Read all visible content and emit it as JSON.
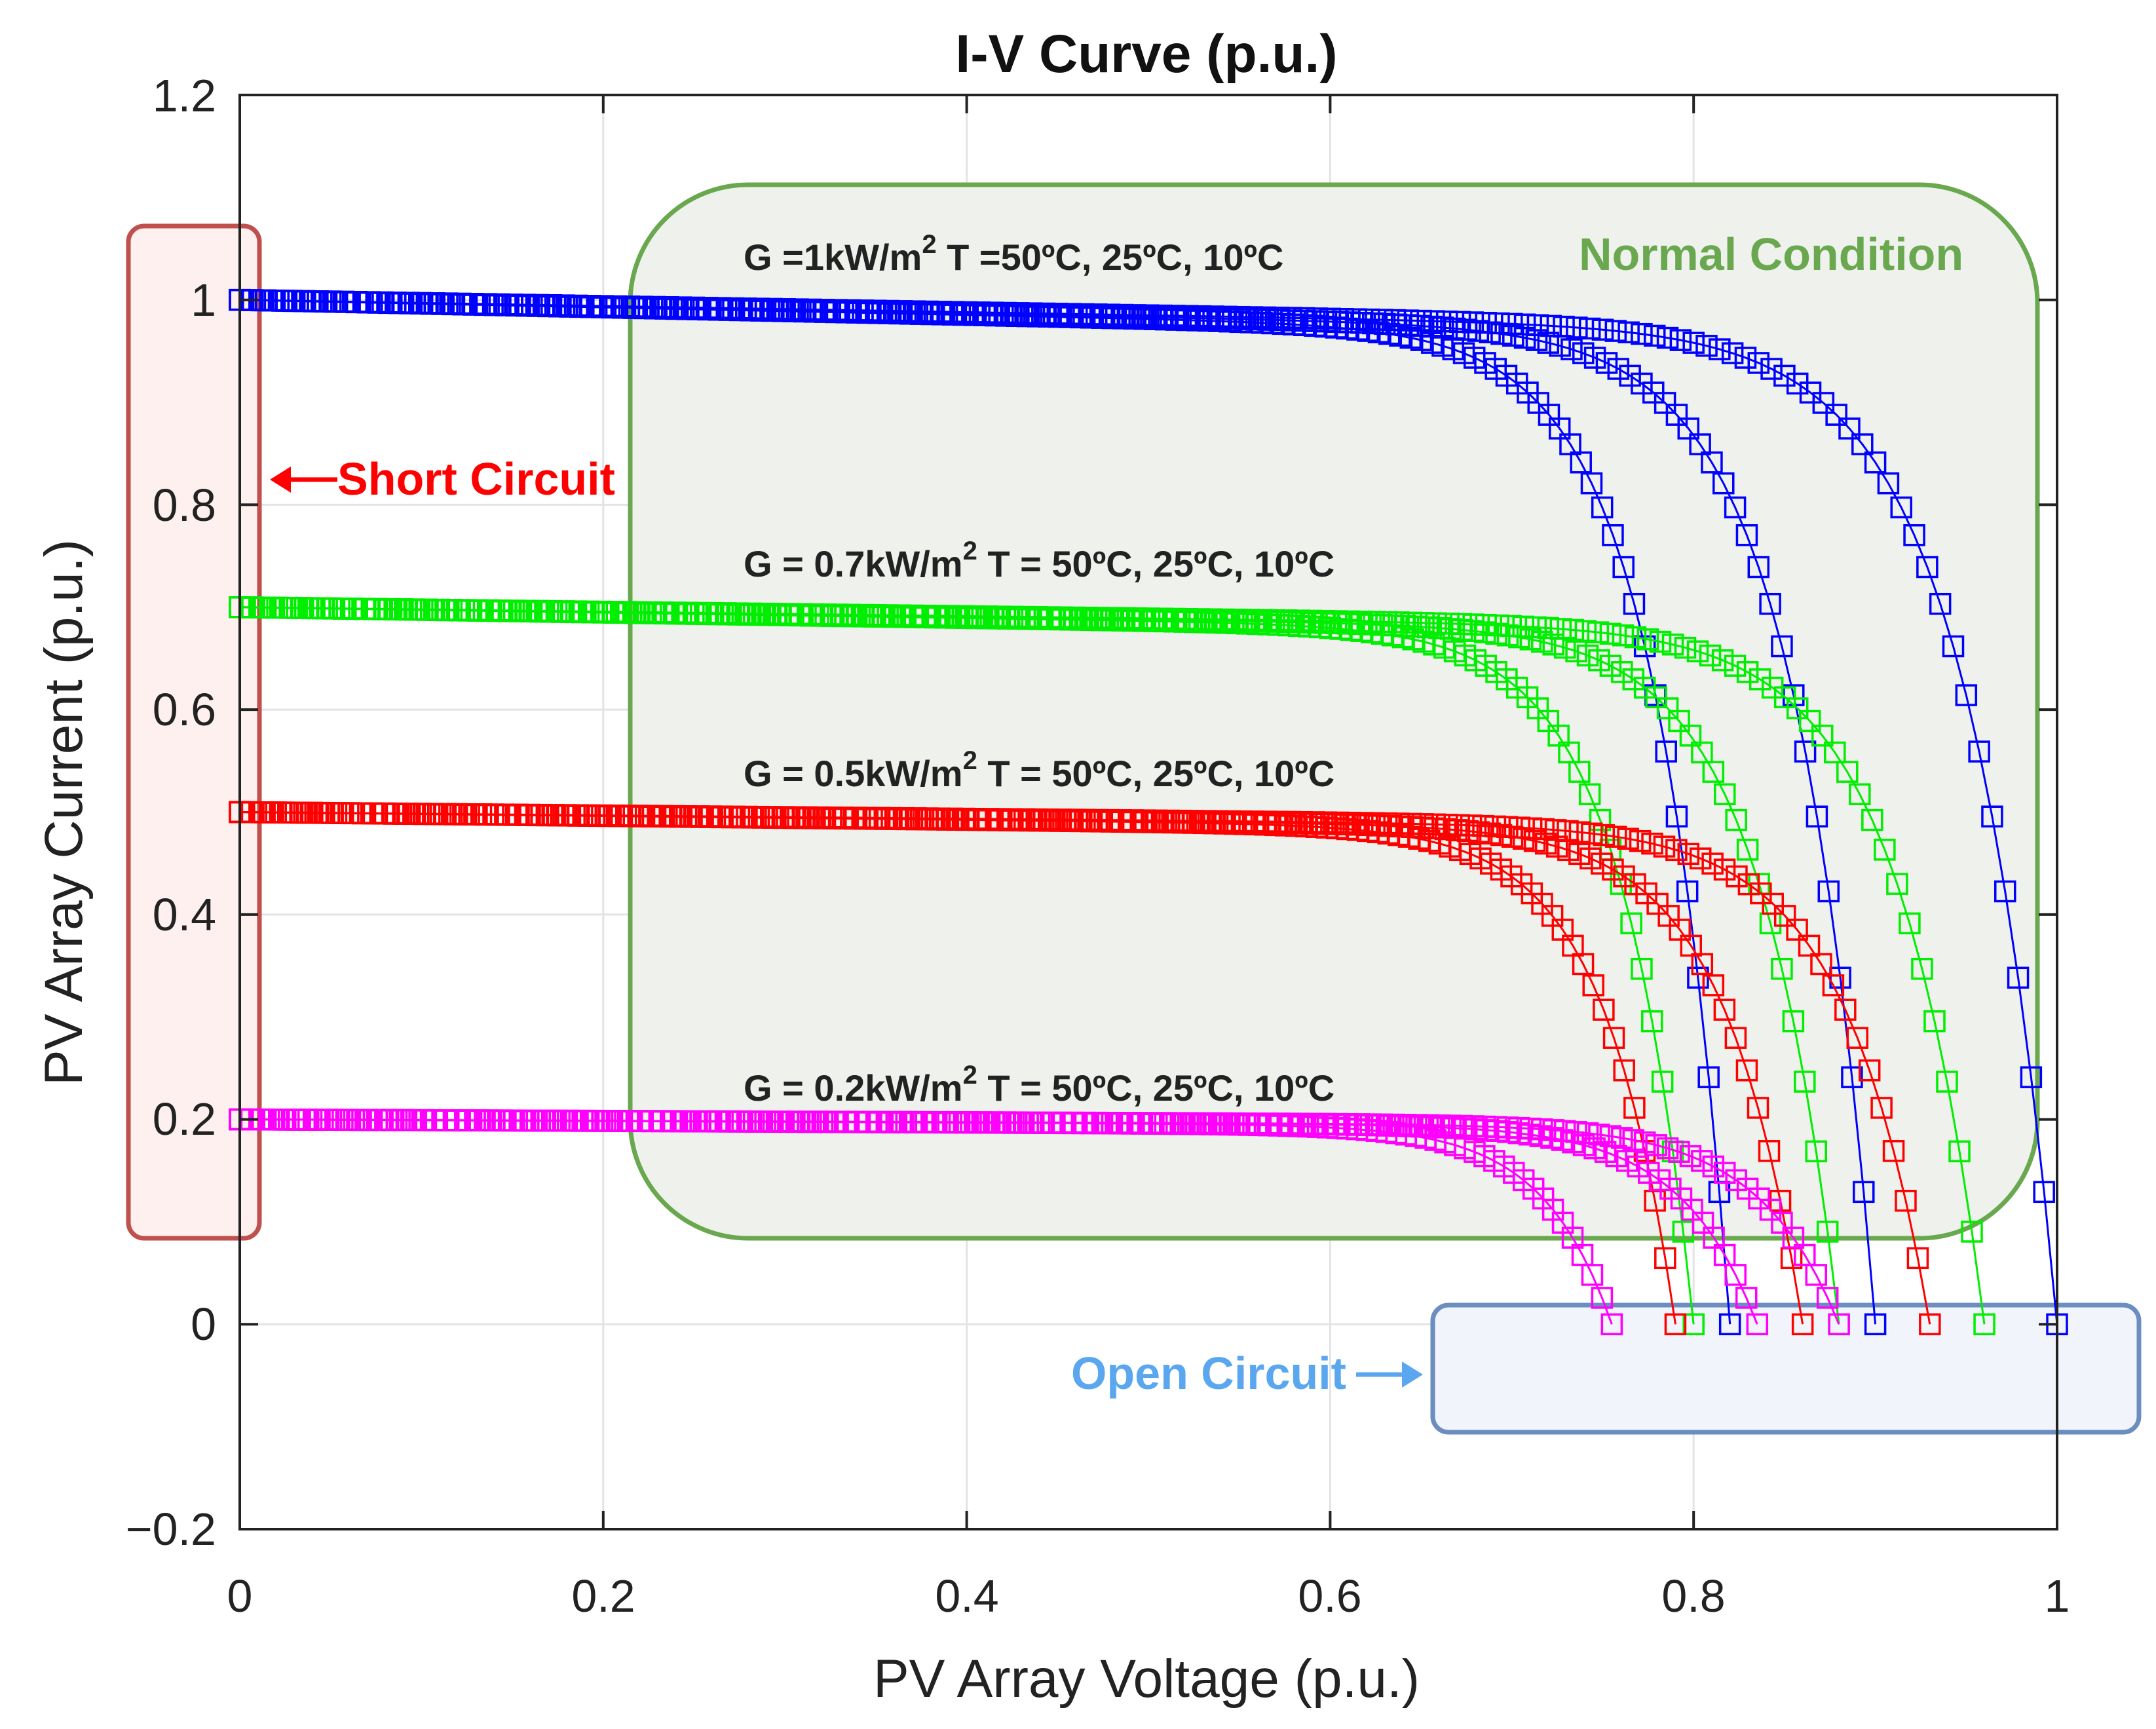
{
  "chart_data": {
    "type": "line",
    "title": "I-V Curve (p.u.)",
    "xlabel": "PV Array Voltage (p.u.)",
    "ylabel": "PV Array Current (p.u.)",
    "xlim": [
      0,
      1
    ],
    "ylim": [
      -0.2,
      1.2
    ],
    "xticks": [
      0,
      0.2,
      0.4,
      0.6,
      0.8,
      1
    ],
    "yticks": [
      -0.2,
      0,
      0.2,
      0.4,
      0.6,
      0.8,
      1,
      1.2
    ],
    "xtick_labels": [
      "0",
      "0.2",
      "0.4",
      "0.6",
      "0.8",
      "1"
    ],
    "ytick_labels": [
      "−0.2",
      "0",
      "0.2",
      "0.4",
      "0.6",
      "0.8",
      "1",
      "1.2"
    ],
    "grid": true,
    "marker": "square",
    "series": [
      {
        "name": "G = 1 kW/m2, T = 50°C",
        "irradiance": 1.0,
        "temperature": 50,
        "color": "#0000ff",
        "isc": 1.0,
        "voc": 0.82
      },
      {
        "name": "G = 1 kW/m2, T = 25°C",
        "irradiance": 1.0,
        "temperature": 25,
        "color": "#0000ff",
        "isc": 1.0,
        "voc": 0.9
      },
      {
        "name": "G = 1 kW/m2, T = 10°C",
        "irradiance": 1.0,
        "temperature": 10,
        "color": "#0000ff",
        "isc": 1.0,
        "voc": 1.0
      },
      {
        "name": "G = 0.7 kW/m2, T = 50°C",
        "irradiance": 0.7,
        "temperature": 50,
        "color": "#00ee00",
        "isc": 0.7,
        "voc": 0.8
      },
      {
        "name": "G = 0.7 kW/m2, T = 25°C",
        "irradiance": 0.7,
        "temperature": 25,
        "color": "#00ee00",
        "isc": 0.7,
        "voc": 0.88
      },
      {
        "name": "G = 0.7 kW/m2, T = 10°C",
        "irradiance": 0.7,
        "temperature": 10,
        "color": "#00ee00",
        "isc": 0.7,
        "voc": 0.96
      },
      {
        "name": "G = 0.5 kW/m2, T = 50°C",
        "irradiance": 0.5,
        "temperature": 50,
        "color": "#ff0000",
        "isc": 0.5,
        "voc": 0.79
      },
      {
        "name": "G = 0.5 kW/m2, T = 25°C",
        "irradiance": 0.5,
        "temperature": 25,
        "color": "#ff0000",
        "isc": 0.5,
        "voc": 0.86
      },
      {
        "name": "G = 0.5 kW/m2, T = 10°C",
        "irradiance": 0.5,
        "temperature": 10,
        "color": "#ff0000",
        "isc": 0.5,
        "voc": 0.93
      },
      {
        "name": "G = 0.2 kW/m2, T = 50°C",
        "irradiance": 0.2,
        "temperature": 50,
        "color": "#ff00ff",
        "isc": 0.2,
        "voc": 0.755
      },
      {
        "name": "G = 0.2 kW/m2, T = 25°C",
        "irradiance": 0.2,
        "temperature": 25,
        "color": "#ff00ff",
        "isc": 0.2,
        "voc": 0.835
      },
      {
        "name": "G = 0.2 kW/m2, T = 10°C",
        "irradiance": 0.2,
        "temperature": 10,
        "color": "#ff00ff",
        "isc": 0.2,
        "voc": 0.88
      }
    ],
    "annotations": {
      "g1": {
        "pre": "G =1kW/m",
        "sup": "2",
        "post": " T =50ºC, 25ºC, 10ºC"
      },
      "g07": {
        "pre": "G = 0.7kW/m",
        "sup": "2",
        "post": " T = 50ºC, 25ºC, 10ºC"
      },
      "g05": {
        "pre": "G = 0.5kW/m",
        "sup": "2",
        "post": " T = 50ºC, 25ºC, 10ºC"
      },
      "g02": {
        "pre": "G = 0.2kW/m",
        "sup": "2",
        "post": " T = 50ºC, 25ºC, 10ºC"
      },
      "normal": "Normal Condition",
      "short": "Short Circuit",
      "open": "Open Circuit"
    },
    "colors": {
      "normal": "#6aa84f",
      "normal_fill": "#eef1ec",
      "short": "#ff0000",
      "short_box": "#c0504d",
      "short_fill": "#fdf0ef",
      "open": "#5aa7f0",
      "open_box": "#6b8dc0",
      "open_fill": "#f1f4fa"
    }
  }
}
